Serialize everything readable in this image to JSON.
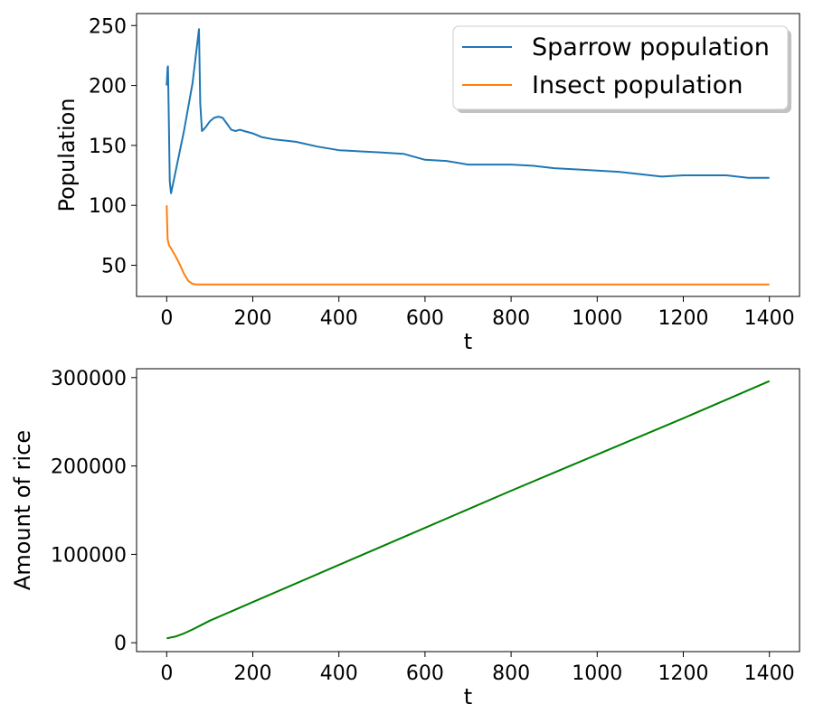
{
  "chart_data": [
    {
      "type": "line",
      "xlabel": "t",
      "ylabel": "Population",
      "xlim": [
        -70,
        1470
      ],
      "ylim": [
        24,
        260
      ],
      "xticks": [
        0,
        200,
        400,
        600,
        800,
        1000,
        1200,
        1400
      ],
      "yticks": [
        50,
        100,
        150,
        200,
        250
      ],
      "legend": {
        "placement": "upper right",
        "shadow": true
      },
      "series": [
        {
          "name": "Sparrow population",
          "color": "#1f77b4",
          "x": [
            0,
            2,
            3,
            5,
            7,
            10,
            20,
            40,
            60,
            75,
            78,
            82,
            90,
            100,
            110,
            120,
            130,
            140,
            150,
            160,
            170,
            180,
            200,
            220,
            250,
            300,
            350,
            400,
            450,
            500,
            550,
            600,
            650,
            700,
            750,
            800,
            850,
            900,
            950,
            1000,
            1050,
            1100,
            1150,
            1200,
            1250,
            1300,
            1350,
            1400
          ],
          "y": [
            200,
            215,
            216,
            170,
            120,
            110,
            127,
            162,
            202,
            247,
            185,
            162,
            165,
            170,
            173,
            174,
            173,
            168,
            163,
            162,
            163,
            162,
            160,
            157,
            155,
            153,
            149,
            146,
            145,
            144,
            143,
            138,
            137,
            134,
            134,
            134,
            133,
            131,
            130,
            129,
            128,
            126,
            124,
            125,
            125,
            125,
            123,
            123
          ]
        },
        {
          "name": "Insect population",
          "color": "#ff7f0e",
          "x": [
            0,
            2,
            5,
            10,
            20,
            30,
            40,
            50,
            60,
            70,
            80,
            100,
            200,
            400,
            600,
            800,
            1000,
            1200,
            1400
          ],
          "y": [
            100,
            72,
            67,
            64,
            58,
            51,
            43,
            37,
            34.5,
            34,
            34,
            34,
            34,
            34,
            34,
            34,
            34,
            34,
            34
          ]
        }
      ]
    },
    {
      "type": "line",
      "xlabel": "t",
      "ylabel": "Amount of rice",
      "xlim": [
        -70,
        1470
      ],
      "ylim": [
        -10000,
        310000
      ],
      "xticks": [
        0,
        200,
        400,
        600,
        800,
        1000,
        1200,
        1400
      ],
      "yticks": [
        0,
        100000,
        200000,
        300000
      ],
      "series": [
        {
          "name": "",
          "color": "#008000",
          "x": [
            0,
            20,
            40,
            60,
            80,
            100,
            200,
            400,
            600,
            800,
            1000,
            1200,
            1400
          ],
          "y": [
            5000,
            7000,
            10500,
            15000,
            20000,
            25000,
            46000,
            88000,
            130000,
            172000,
            213000,
            254000,
            296000
          ]
        }
      ]
    }
  ]
}
